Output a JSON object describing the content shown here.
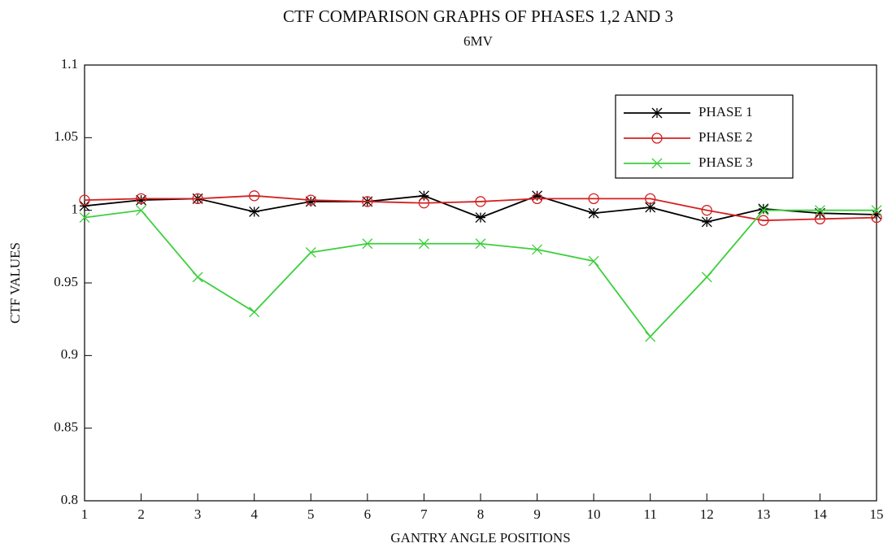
{
  "chart_data": {
    "type": "line",
    "title": "CTF COMPARISON GRAPHS OF PHASES 1,2 AND 3",
    "subtitle": "6MV",
    "x_label": "GANTRY ANGLE POSITIONS",
    "y_label": "CTF VALUES",
    "x": [
      1,
      2,
      3,
      4,
      5,
      6,
      7,
      8,
      9,
      10,
      11,
      12,
      13,
      14,
      15
    ],
    "xlim": [
      1,
      15
    ],
    "xticks": [
      1,
      2,
      3,
      4,
      5,
      6,
      7,
      8,
      9,
      10,
      11,
      12,
      13,
      14,
      15
    ],
    "ylim": [
      0.8,
      1.1
    ],
    "yticks": [
      0.8,
      0.85,
      0.9,
      0.95,
      1,
      1.05,
      1.1
    ],
    "grid": false,
    "legend": "upper right",
    "series": [
      {
        "name": "PHASE 1",
        "color": "#000000",
        "marker": "asterisk",
        "values": [
          1.003,
          1.007,
          1.008,
          0.999,
          1.006,
          1.006,
          1.01,
          0.995,
          1.01,
          0.998,
          1.002,
          0.992,
          1.001,
          0.998,
          0.997
        ]
      },
      {
        "name": "PHASE 2",
        "color": "#d42020",
        "marker": "circle",
        "values": [
          1.007,
          1.008,
          1.008,
          1.01,
          1.007,
          1.006,
          1.005,
          1.006,
          1.008,
          1.008,
          1.008,
          1.0,
          0.993,
          0.994,
          0.995
        ]
      },
      {
        "name": "PHASE 3",
        "color": "#3ccf3c",
        "marker": "x",
        "values": [
          0.995,
          1.0,
          0.954,
          0.93,
          0.971,
          0.977,
          0.977,
          0.977,
          0.973,
          0.965,
          0.913,
          0.954,
          1.0,
          1.0,
          1.0
        ]
      }
    ]
  }
}
